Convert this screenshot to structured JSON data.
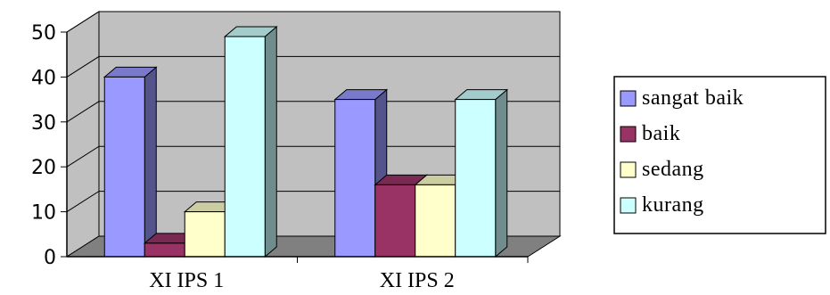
{
  "chart_data": {
    "type": "bar",
    "style": "3d-clustered-column",
    "categories": [
      "XI IPS 1",
      "XI IPS 2"
    ],
    "series": [
      {
        "name": "sangat baik",
        "values": [
          40,
          35
        ]
      },
      {
        "name": "baik",
        "values": [
          3,
          16
        ]
      },
      {
        "name": "sedang",
        "values": [
          10,
          16
        ]
      },
      {
        "name": "kurang",
        "values": [
          49,
          35
        ]
      }
    ],
    "ylim": [
      0,
      50
    ],
    "yticks": [
      "0",
      "10",
      "20",
      "30",
      "40",
      "50"
    ],
    "grid": true,
    "legend_position": "right",
    "title": "",
    "xlabel": "",
    "ylabel": "",
    "colors": {
      "series": [
        "#9999FF",
        "#993366",
        "#FFFFCC",
        "#CCFFFF"
      ],
      "wall": "#C0C0C0",
      "floor": "#808080",
      "gridline": "#000000"
    }
  }
}
